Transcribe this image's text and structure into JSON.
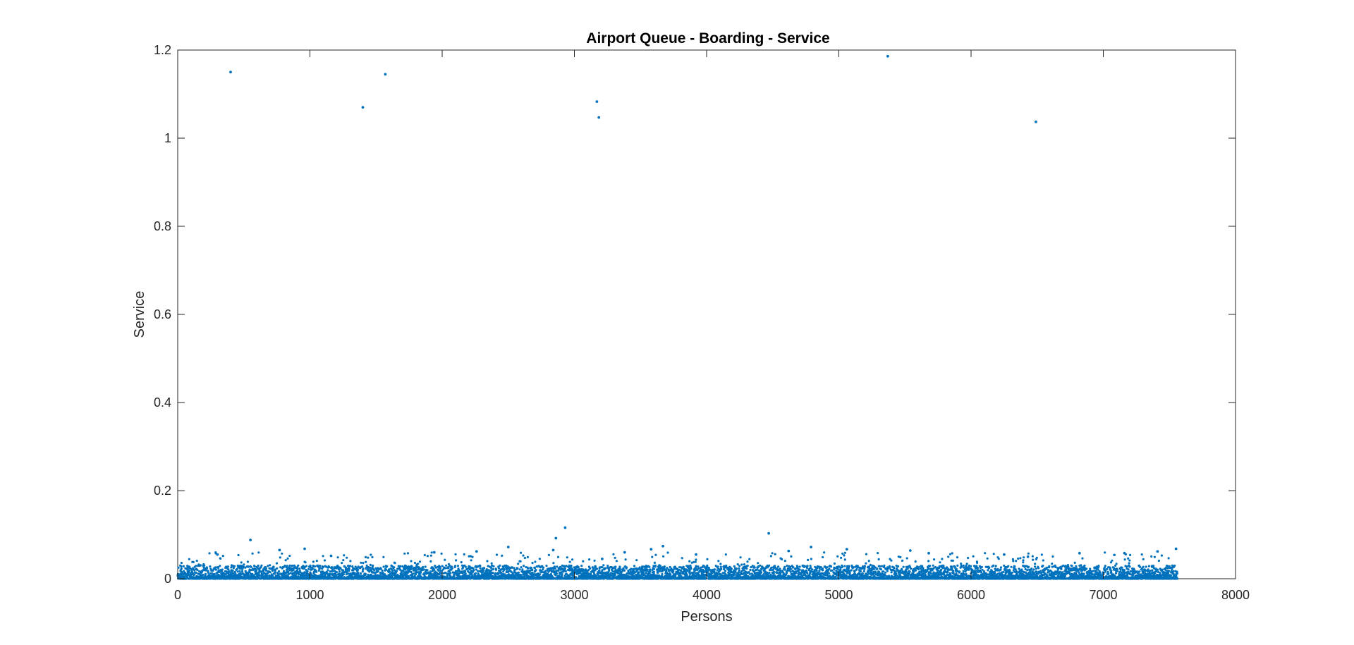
{
  "chart_data": {
    "type": "scatter",
    "title": "Airport Queue - Boarding - Service",
    "xlabel": "Persons",
    "ylabel": "Service",
    "xlim": [
      0,
      8000
    ],
    "ylim": [
      0,
      1.2
    ],
    "xticks": [
      0,
      1000,
      2000,
      3000,
      4000,
      5000,
      6000,
      7000,
      8000
    ],
    "yticks": [
      0,
      0.2,
      0.4,
      0.6,
      0.8,
      1,
      1.2
    ],
    "xtick_labels": [
      "0",
      "1000",
      "2000",
      "3000",
      "4000",
      "5000",
      "6000",
      "7000",
      "8000"
    ],
    "ytick_labels": [
      "0",
      "0.2",
      "0.4",
      "0.6",
      "0.8",
      "1",
      "1.2"
    ],
    "grid": false,
    "marker_color": "#0072BD",
    "n_points": 7560,
    "series": [
      {
        "points": [
          [
            400,
            1.15
          ],
          [
            1400,
            1.07
          ],
          [
            1570,
            1.145
          ],
          [
            3170,
            1.083
          ],
          [
            3185,
            1.047
          ],
          [
            5370,
            1.186
          ],
          [
            6490,
            1.037
          ],
          [
            2930,
            0.116
          ],
          [
            4470,
            0.103
          ],
          [
            550,
            0.088
          ],
          [
            2860,
            0.092
          ],
          [
            2500,
            0.072
          ],
          [
            3670,
            0.074
          ],
          [
            4790,
            0.072
          ],
          [
            7550,
            0.068
          ],
          [
            960,
            0.068
          ],
          [
            770,
            0.065
          ],
          [
            5060,
            0.067
          ],
          [
            3580,
            0.067
          ],
          [
            3380,
            0.06
          ],
          [
            5540,
            0.064
          ],
          [
            7410,
            0.062
          ],
          [
            6820,
            0.058
          ],
          [
            1940,
            0.06
          ],
          [
            2260,
            0.062
          ],
          [
            1160,
            0.052
          ],
          [
            5680,
            0.058
          ],
          [
            7160,
            0.058
          ],
          [
            6250,
            0.055
          ],
          [
            4620,
            0.063
          ],
          [
            3920,
            0.055
          ],
          [
            300,
            0.055
          ],
          [
            6430,
            0.05
          ],
          [
            2840,
            0.065
          ],
          [
            3210,
            0.045
          ]
        ],
        "bulk": {
          "x_range": [
            0,
            7560
          ],
          "typical_max": 0.03,
          "sparse_max": 0.06
        }
      }
    ]
  }
}
